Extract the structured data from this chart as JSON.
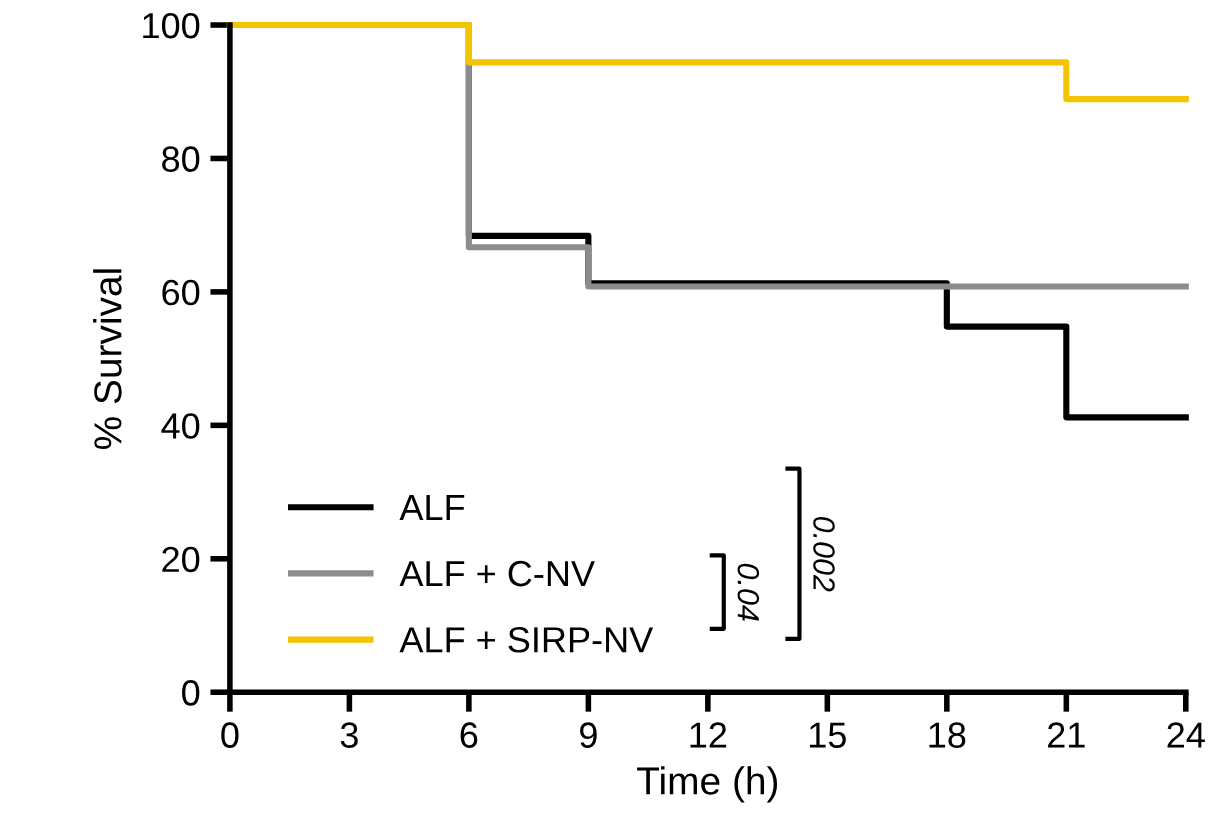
{
  "chart_data": {
    "type": "step",
    "xlabel": "Time (h)",
    "ylabel": "% Survival",
    "series": [
      {
        "name": "ALF",
        "color": "#000000",
        "x": [
          0,
          6,
          9,
          18,
          21,
          24
        ],
        "values": [
          100,
          68.4,
          61.3,
          54.8,
          41.2,
          41.2
        ]
      },
      {
        "name": "ALF + C-NV",
        "color": "#8c8c8c",
        "x": [
          0,
          6,
          9,
          24
        ],
        "values": [
          100,
          66.7,
          60.8,
          60.8
        ]
      },
      {
        "name": "ALF + SIRP-NV",
        "color": "#f5c400",
        "x": [
          0,
          6,
          21,
          24
        ],
        "values": [
          100,
          94.4,
          88.9,
          88.9
        ]
      }
    ],
    "xlim": [
      0,
      24
    ],
    "ylim": [
      0,
      100
    ],
    "xticks": [
      0,
      3,
      6,
      9,
      12,
      15,
      18,
      21,
      24
    ],
    "yticks": [
      0,
      20,
      40,
      60,
      80,
      100
    ],
    "legend": "bottom left",
    "grid": false,
    "annotations": [
      "0.04",
      "0.002"
    ]
  }
}
